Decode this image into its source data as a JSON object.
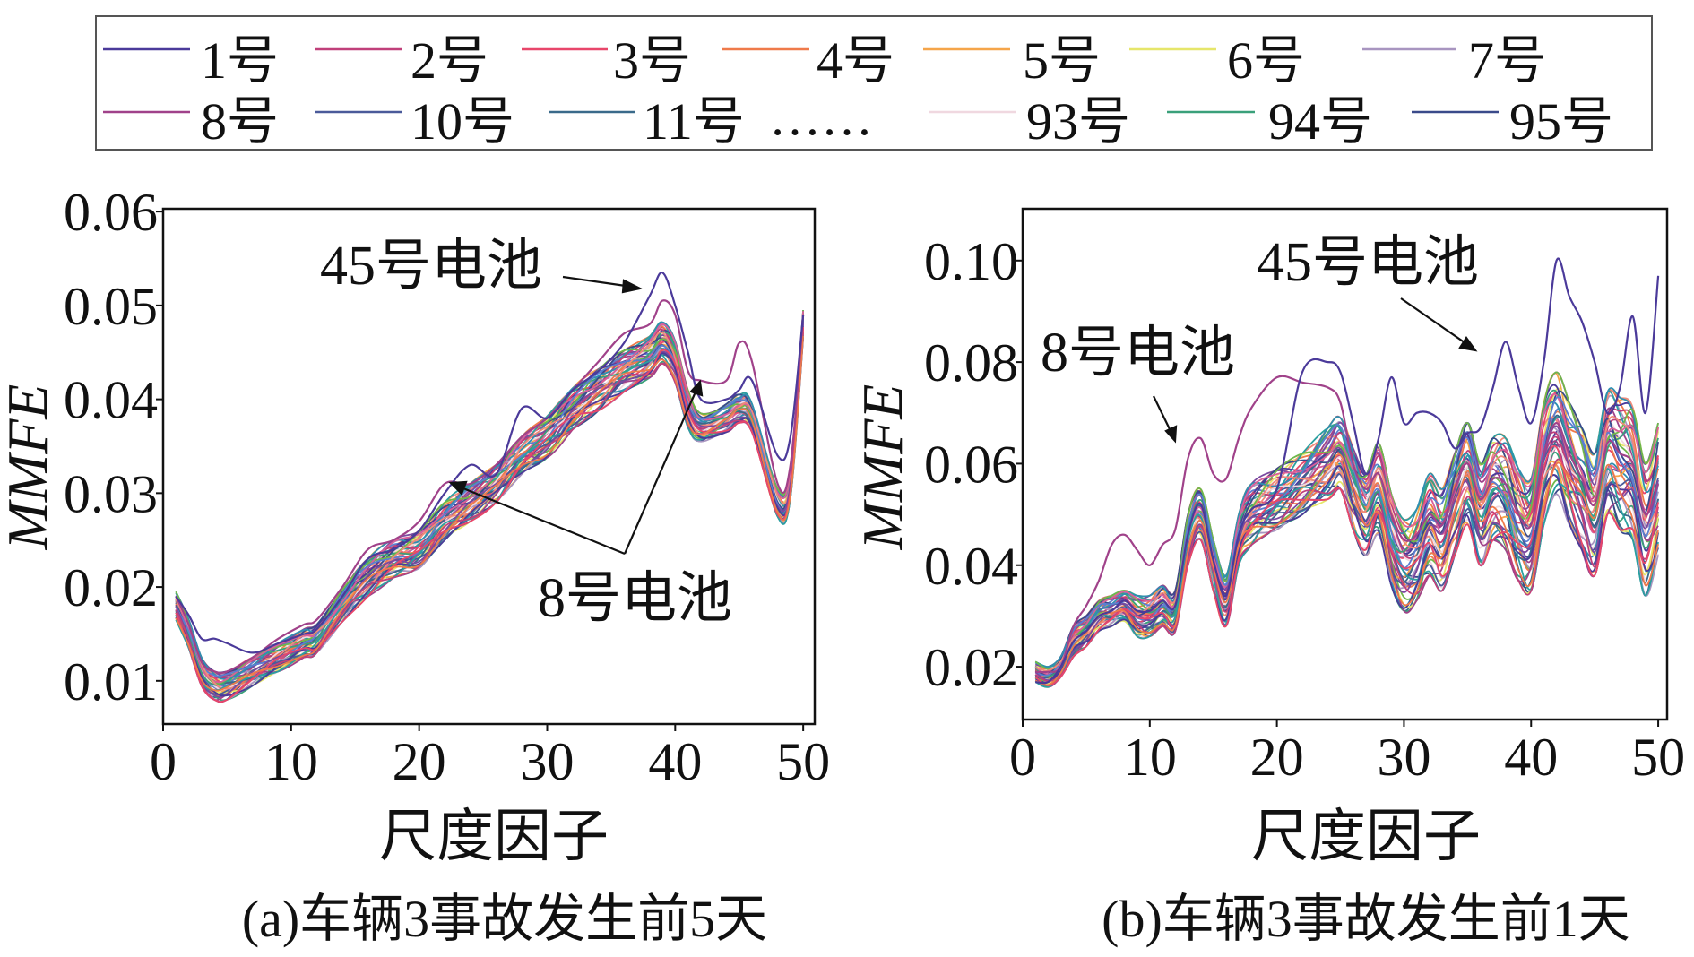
{
  "legend": {
    "items": [
      {
        "label": "1号",
        "color": "#4b3a9a"
      },
      {
        "label": "2号",
        "color": "#c0407a"
      },
      {
        "label": "3号",
        "color": "#e8466a"
      },
      {
        "label": "4号",
        "color": "#ef7a4a"
      },
      {
        "label": "5号",
        "color": "#f5a54a"
      },
      {
        "label": "6号",
        "color": "#e6e66a"
      },
      {
        "label": "7号",
        "color": "#a895c0"
      },
      {
        "label": "8号",
        "color": "#a0428a"
      },
      {
        "label": "10号",
        "color": "#4a5a9a"
      },
      {
        "label": "11号",
        "color": "#3a6a8a"
      },
      {
        "label": "93号",
        "color": "#f0d8e0"
      },
      {
        "label": "94号",
        "color": "#3aa07a"
      },
      {
        "label": "95号",
        "color": "#3a4a8a"
      }
    ],
    "ellipsis": "……"
  },
  "chart_data": [
    {
      "type": "line",
      "caption": "(a)车辆3事故发生前5天",
      "xlabel": "尺度因子",
      "ylabel": "MMFE",
      "xlim": [
        0,
        50.9
      ],
      "ylim": [
        0.0054,
        0.0603
      ],
      "xticks": [
        "0",
        "10",
        "20",
        "30",
        "40",
        "50"
      ],
      "yticks": [
        "0.01",
        "0.02",
        "0.03",
        "0.04",
        "0.05",
        "0.06"
      ],
      "grid": false,
      "annotations": [
        "45号电池",
        "8号电池"
      ],
      "x": [
        1,
        2,
        3,
        4,
        5,
        7,
        9,
        11,
        12,
        14,
        16,
        18,
        20,
        22,
        24,
        26,
        28,
        30,
        32,
        34,
        36,
        38,
        39,
        40,
        41,
        42,
        44,
        45,
        46,
        48,
        49,
        50
      ],
      "bundle_mean": [
        0.018,
        0.015,
        0.011,
        0.0095,
        0.0095,
        0.011,
        0.0125,
        0.014,
        0.0145,
        0.018,
        0.021,
        0.023,
        0.024,
        0.027,
        0.029,
        0.031,
        0.034,
        0.036,
        0.039,
        0.041,
        0.043,
        0.0445,
        0.046,
        0.044,
        0.039,
        0.037,
        0.038,
        0.039,
        0.038,
        0.029,
        0.031,
        0.048
      ],
      "band_halfwidth": [
        0.0015,
        0.0015,
        0.0015,
        0.0015,
        0.0015,
        0.0015,
        0.0015,
        0.0015,
        0.0015,
        0.0017,
        0.002,
        0.002,
        0.002,
        0.002,
        0.002,
        0.002,
        0.002,
        0.0022,
        0.0022,
        0.0022,
        0.0022,
        0.0022,
        0.0022,
        0.0022,
        0.002,
        0.0015,
        0.0015,
        0.0015,
        0.0015,
        0.0015,
        0.0015,
        0.0015
      ],
      "highlight": [
        {
          "name": "8号",
          "color": "#a0428a",
          "values": [
            0.019,
            0.016,
            0.012,
            0.011,
            0.011,
            0.0125,
            0.0145,
            0.016,
            0.0165,
            0.02,
            0.024,
            0.025,
            0.027,
            0.031,
            0.031,
            0.033,
            0.036,
            0.038,
            0.041,
            0.044,
            0.047,
            0.048,
            0.0505,
            0.049,
            0.043,
            0.042,
            0.042,
            0.046,
            0.044,
            0.031,
            0.033,
            0.049
          ]
        },
        {
          "name": "45号",
          "color": "#4b3a9a",
          "values": [
            0.019,
            0.017,
            0.0145,
            0.0145,
            0.014,
            0.013,
            0.014,
            0.015,
            0.0155,
            0.019,
            0.023,
            0.024,
            0.026,
            0.03,
            0.033,
            0.032,
            0.039,
            0.038,
            0.041,
            0.043,
            0.046,
            0.051,
            0.0535,
            0.05,
            0.045,
            0.04,
            0.04,
            0.041,
            0.042,
            0.034,
            0.036,
            0.049
          ]
        }
      ]
    },
    {
      "type": "line",
      "caption": "(b)车辆3事故发生前1天",
      "xlabel": "尺度因子",
      "ylabel": "MMFE",
      "xlim": [
        0,
        50.7
      ],
      "ylim": [
        0.0096,
        0.1102
      ],
      "xticks": [
        "0",
        "10",
        "20",
        "30",
        "40",
        "50"
      ],
      "yticks": [
        "0.02",
        "0.04",
        "0.06",
        "0.08",
        "0.10"
      ],
      "grid": false,
      "annotations": [
        "45号电池",
        "8号电池"
      ],
      "x": [
        1,
        2,
        3,
        4,
        5,
        6,
        7,
        8,
        9,
        10,
        11,
        12,
        13,
        14,
        15,
        16,
        17,
        18,
        20,
        22,
        24,
        25,
        26,
        27,
        28,
        29,
        30,
        31,
        32,
        33,
        34,
        35,
        36,
        37,
        38,
        39,
        40,
        41,
        42,
        43,
        44,
        45,
        46,
        47,
        48,
        49,
        50
      ],
      "bundle_mean": [
        0.019,
        0.018,
        0.02,
        0.025,
        0.027,
        0.03,
        0.031,
        0.032,
        0.03,
        0.03,
        0.032,
        0.031,
        0.045,
        0.05,
        0.04,
        0.033,
        0.045,
        0.05,
        0.053,
        0.056,
        0.06,
        0.062,
        0.055,
        0.05,
        0.055,
        0.045,
        0.04,
        0.042,
        0.048,
        0.045,
        0.052,
        0.058,
        0.05,
        0.055,
        0.054,
        0.048,
        0.046,
        0.06,
        0.066,
        0.06,
        0.055,
        0.05,
        0.062,
        0.06,
        0.058,
        0.047,
        0.055
      ],
      "band_halfwidth": [
        0.002,
        0.002,
        0.002,
        0.003,
        0.003,
        0.003,
        0.003,
        0.003,
        0.004,
        0.004,
        0.004,
        0.004,
        0.005,
        0.005,
        0.005,
        0.005,
        0.005,
        0.006,
        0.006,
        0.006,
        0.007,
        0.007,
        0.008,
        0.008,
        0.009,
        0.009,
        0.009,
        0.009,
        0.01,
        0.01,
        0.01,
        0.01,
        0.01,
        0.01,
        0.011,
        0.011,
        0.011,
        0.012,
        0.012,
        0.012,
        0.012,
        0.012,
        0.012,
        0.013,
        0.013,
        0.013,
        0.013
      ],
      "highlight": [
        {
          "name": "8号",
          "color": "#a0428a",
          "values": [
            0.019,
            0.019,
            0.02,
            0.028,
            0.032,
            0.037,
            0.044,
            0.046,
            0.043,
            0.04,
            0.044,
            0.047,
            0.061,
            0.065,
            0.058,
            0.057,
            0.065,
            0.071,
            0.077,
            0.076,
            0.075,
            0.072,
            0.06,
            0.055,
            0.058,
            0.05,
            0.045,
            0.046,
            0.05,
            0.048,
            0.055,
            0.06,
            0.053,
            0.057,
            0.056,
            0.05,
            0.048,
            0.062,
            0.068,
            0.062,
            0.057,
            0.052,
            0.064,
            0.062,
            0.06,
            0.05,
            0.056
          ]
        },
        {
          "name": "45号",
          "color": "#4b3a9a",
          "values": [
            0.017,
            0.017,
            0.02,
            0.025,
            0.027,
            0.03,
            0.031,
            0.033,
            0.031,
            0.031,
            0.033,
            0.032,
            0.046,
            0.052,
            0.041,
            0.034,
            0.046,
            0.051,
            0.055,
            0.078,
            0.08,
            0.078,
            0.068,
            0.058,
            0.065,
            0.077,
            0.068,
            0.07,
            0.07,
            0.068,
            0.063,
            0.066,
            0.067,
            0.075,
            0.084,
            0.075,
            0.068,
            0.08,
            0.1,
            0.093,
            0.088,
            0.08,
            0.07,
            0.075,
            0.089,
            0.07,
            0.097
          ]
        }
      ]
    }
  ]
}
